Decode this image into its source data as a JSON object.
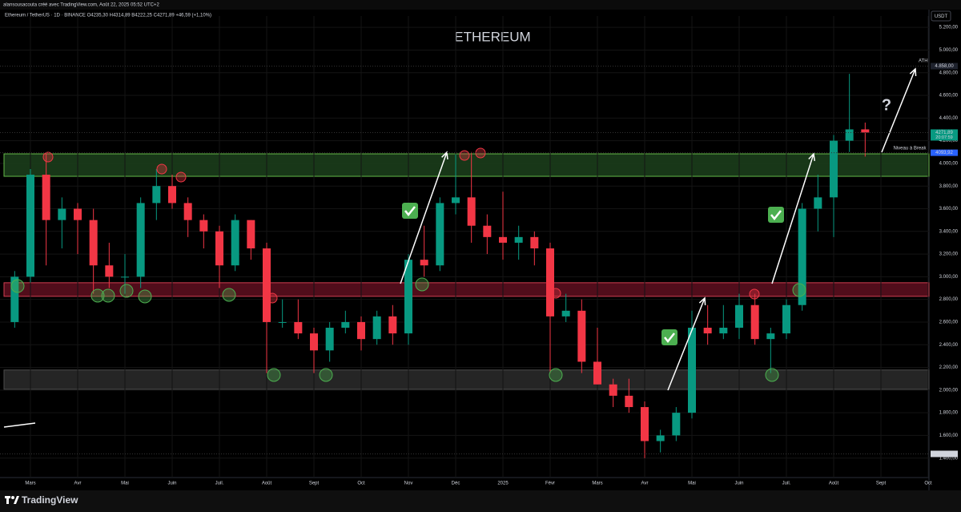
{
  "header": {
    "credit": "alansousacouta créé avec TradingView.com, Août 22, 2025 05:52 UTC+2",
    "symbol": "Ethereum / TetherUS · 1D · BINANCE  O4235,30 H4314,89 B4222,25 C4271,89 +46,59 (+1,10%)",
    "currency": "USDT"
  },
  "footer": {
    "brand": "TradingView"
  },
  "chart_data": {
    "type": "candlestick",
    "title": "ETHEREUM",
    "categories": [
      null,
      "Mars",
      null,
      null,
      "Avr",
      null,
      null,
      "Mai",
      null,
      null,
      "Juin",
      null,
      null,
      "Juil.",
      null,
      null,
      "Août",
      null,
      null,
      "Sept",
      null,
      null,
      "Oct",
      null,
      null,
      "Nov",
      null,
      null,
      "Déc",
      null,
      null,
      "2025",
      null,
      null,
      "Févr",
      null,
      null,
      "Mars",
      null,
      null,
      "Avr",
      null,
      null,
      "Mai",
      null,
      null,
      "Juin",
      null,
      null,
      "Juil.",
      null,
      null,
      "Août",
      null,
      null,
      "Sept",
      null,
      null,
      "Oct"
    ],
    "values": [
      [
        2600,
        3050,
        2550,
        3000
      ],
      [
        3000,
        3950,
        2950,
        3900
      ],
      [
        3900,
        4090,
        3100,
        3500
      ],
      [
        3500,
        3700,
        3250,
        3600
      ],
      [
        3600,
        3650,
        3200,
        3500
      ],
      [
        3500,
        3600,
        2850,
        3100
      ],
      [
        3100,
        3300,
        2900,
        3000
      ],
      [
        3000,
        3200,
        2850,
        3000
      ],
      [
        3000,
        3700,
        2900,
        3650
      ],
      [
        3650,
        3950,
        3500,
        3800
      ],
      [
        3800,
        3900,
        3600,
        3650
      ],
      [
        3650,
        3700,
        3350,
        3500
      ],
      [
        3500,
        3550,
        3250,
        3400
      ],
      [
        3400,
        3450,
        2900,
        3100
      ],
      [
        3100,
        3550,
        3050,
        3500
      ],
      [
        3500,
        3500,
        3150,
        3250
      ],
      [
        3250,
        3300,
        2150,
        2600
      ],
      [
        2600,
        2800,
        2550,
        2600
      ],
      [
        2600,
        2800,
        2450,
        2500
      ],
      [
        2500,
        2550,
        2150,
        2350
      ],
      [
        2350,
        2600,
        2250,
        2550
      ],
      [
        2550,
        2700,
        2500,
        2600
      ],
      [
        2600,
        2650,
        2350,
        2450
      ],
      [
        2450,
        2700,
        2400,
        2650
      ],
      [
        2650,
        2750,
        2400,
        2500
      ],
      [
        2500,
        3200,
        2400,
        3150
      ],
      [
        3150,
        3450,
        3000,
        3100
      ],
      [
        3100,
        3700,
        3050,
        3650
      ],
      [
        3650,
        4080,
        3550,
        3700
      ],
      [
        3700,
        4100,
        3300,
        3450
      ],
      [
        3450,
        3550,
        3200,
        3350
      ],
      [
        3350,
        3750,
        3150,
        3300
      ],
      [
        3300,
        3450,
        3150,
        3350
      ],
      [
        3350,
        3400,
        3100,
        3250
      ],
      [
        3250,
        3300,
        2150,
        2650
      ],
      [
        2650,
        2850,
        2600,
        2700
      ],
      [
        2700,
        2800,
        2150,
        2250
      ],
      [
        2250,
        2550,
        2050,
        2050
      ],
      [
        2050,
        2100,
        1850,
        1950
      ],
      [
        1950,
        2100,
        1800,
        1850
      ],
      [
        1850,
        1900,
        1400,
        1550
      ],
      [
        1550,
        1650,
        1450,
        1600
      ],
      [
        1600,
        1850,
        1550,
        1800
      ],
      [
        1800,
        2700,
        1750,
        2550
      ],
      [
        2550,
        2750,
        2400,
        2500
      ],
      [
        2500,
        2750,
        2450,
        2550
      ],
      [
        2550,
        2850,
        2450,
        2750
      ],
      [
        2750,
        2850,
        2400,
        2450
      ],
      [
        2450,
        2550,
        2150,
        2500
      ],
      [
        2500,
        2800,
        2450,
        2750
      ],
      [
        2750,
        3650,
        2700,
        3600
      ],
      [
        3600,
        3900,
        3400,
        3700
      ],
      [
        3700,
        4250,
        3350,
        4200
      ],
      [
        4200,
        4790,
        4100,
        4300
      ],
      [
        4300,
        4360,
        4060,
        4271.89
      ],
      null,
      null,
      null,
      null
    ],
    "up_color": "#089981",
    "down_color": "#f23645",
    "ylim": [
      1200,
      5300
    ],
    "yticks": [
      {
        "value": 1400,
        "label": "1.400,00"
      },
      {
        "value": 1600,
        "label": "1.600,00"
      },
      {
        "value": 1800,
        "label": "1.800,00"
      },
      {
        "value": 2000,
        "label": "2.000,00"
      },
      {
        "value": 2200,
        "label": "2.200,00"
      },
      {
        "value": 2400,
        "label": "2.400,00"
      },
      {
        "value": 2600,
        "label": "2.600,00"
      },
      {
        "value": 2800,
        "label": "2.800,00"
      },
      {
        "value": 3000,
        "label": "3.000,00"
      },
      {
        "value": 3200,
        "label": "3.200,00"
      },
      {
        "value": 3400,
        "label": "3.400,00"
      },
      {
        "value": 3600,
        "label": "3.600,00"
      },
      {
        "value": 3800,
        "label": "3.800,00"
      },
      {
        "value": 4000,
        "label": "4.000,00"
      },
      {
        "value": 4200,
        "label": "4.200,00"
      },
      {
        "value": 4400,
        "label": "4.400,00"
      },
      {
        "value": 4600,
        "label": "4.600,00"
      },
      {
        "value": 4800,
        "label": "4.800,00"
      },
      {
        "value": 5000,
        "label": "5.000,00"
      },
      {
        "value": 5200,
        "label": "5.200,00"
      }
    ],
    "grid": true,
    "zones": [
      {
        "low": 3886,
        "high": 4084,
        "color": "#1b3d1b",
        "border": "#6fcf50"
      },
      {
        "low": 2827,
        "high": 2947,
        "color": "#5a0f1e",
        "border": "#e8455a"
      },
      {
        "low": 2007,
        "high": 2177,
        "color": "#2a2a2a",
        "border": "#555555"
      }
    ],
    "price_labels": [
      {
        "value": 4858,
        "label": "4.858,00",
        "color": "#1e222d"
      },
      {
        "value": 4271.89,
        "label": "4271,89",
        "sub": "20:07:59",
        "color": "#089981"
      },
      {
        "value": 4093.92,
        "label": "4093,92",
        "color": "#2962ff"
      },
      {
        "value": 1437.06,
        "label": "1.437,06",
        "color": "#d1d4dc"
      }
    ],
    "annotations": {
      "ath": "ATH",
      "question": "?",
      "break": "Niveau à Break"
    }
  }
}
